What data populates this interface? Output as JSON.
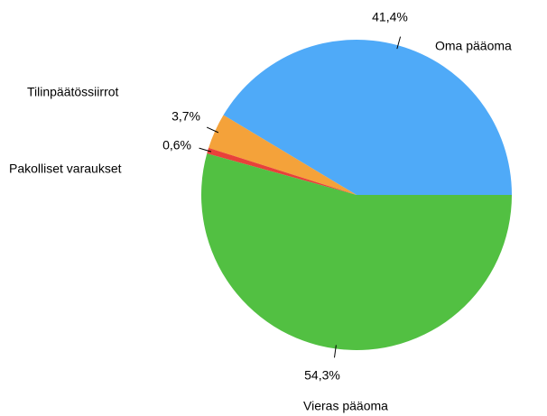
{
  "chart_data": {
    "type": "pie",
    "categories": [
      "Oma pääoma",
      "Tilinpäätössiirrot",
      "Pakolliset varaukset",
      "Vieras pääoma"
    ],
    "values": [
      41.4,
      3.7,
      0.6,
      54.3
    ],
    "value_labels": [
      "41,4%",
      "3,7%",
      "0,6%",
      "54,3%"
    ],
    "colors": [
      "#4faaf8",
      "#f4a23a",
      "#e8413a",
      "#52c042"
    ]
  }
}
